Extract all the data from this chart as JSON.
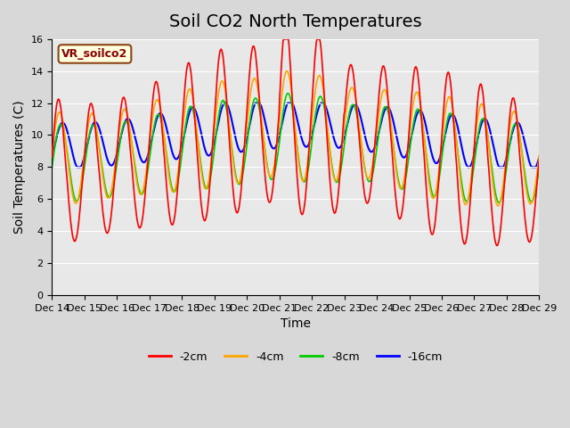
{
  "title": "Soil CO2 North Temperatures",
  "ylabel": "Soil Temperatures (C)",
  "xlabel": "Time",
  "annotation": "VR_soilco2",
  "ylim": [
    0,
    16
  ],
  "yticks": [
    0,
    2,
    4,
    6,
    8,
    10,
    12,
    14,
    16
  ],
  "xtick_labels": [
    "Dec 14",
    "Dec 15",
    "Dec 16",
    "Dec 17",
    "Dec 18",
    "Dec 19",
    "Dec 20",
    "Dec 21",
    "Dec 22",
    "Dec 23",
    "Dec 24",
    "Dec 25",
    "Dec 26",
    "Dec 27",
    "Dec 28",
    "Dec 29"
  ],
  "colors": {
    "-2cm": "#ff0000",
    "-4cm": "#ffa500",
    "-8cm": "#00cc00",
    "-16cm": "#0000ff"
  },
  "legend_labels": [
    "-2cm",
    "-4cm",
    "-8cm",
    "-16cm"
  ],
  "background_color": "#d8d8d8",
  "plot_bg_color": "#e8e8e8",
  "title_fontsize": 14,
  "label_fontsize": 10,
  "tick_fontsize": 8
}
